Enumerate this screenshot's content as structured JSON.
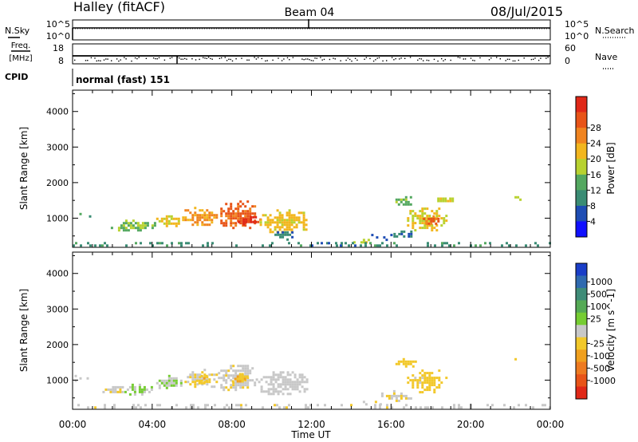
{
  "header": {
    "station": "Halley (fitACF)",
    "beam": "Beam 04",
    "date": "08/Jul/2015"
  },
  "noise_panel": {
    "left_label": "N.Sky",
    "right_label": "N.Search",
    "left_ticks": [
      "10^5",
      "10^0"
    ],
    "right_ticks": [
      "10^5",
      "10^0"
    ]
  },
  "freq_panel": {
    "label_line1": "Freq.",
    "label_line2": "[MHz]",
    "left_ticks": [
      "18",
      "8"
    ],
    "right_ticks": [
      "60",
      "0"
    ],
    "right_label": "Nave"
  },
  "cpid": {
    "label": "CPID",
    "text": "normal (fast) 151"
  },
  "axes": {
    "x_ticks": [
      "00:00",
      "04:00",
      "08:00",
      "12:00",
      "16:00",
      "20:00",
      "00:00"
    ],
    "xlabel": "Time UT",
    "ylabel": "Slant Range [km]",
    "y_ticks": [
      "1000",
      "2000",
      "3000",
      "4000"
    ]
  },
  "chart_data": [
    {
      "type": "heatmap",
      "panel": "power",
      "xlabel": "",
      "ylabel": "Slant Range [km]",
      "x_unit": "hours UT",
      "xlim": [
        0,
        24
      ],
      "ylim": [
        180,
        4600
      ],
      "colorbar": {
        "label": "Power [dB]",
        "ticks": [
          "4",
          "8",
          "12",
          "16",
          "20",
          "24",
          "28"
        ],
        "colors": [
          "#1010ff",
          "#1e4db4",
          "#3a8c74",
          "#54a860",
          "#b8d230",
          "#f2b61e",
          "#f08420",
          "#e85418",
          "#e02818"
        ],
        "range": [
          0,
          30
        ]
      },
      "regions": [
        {
          "x": [
            0.1,
            0.9
          ],
          "y": [
            980,
            1150
          ],
          "value": 10
        },
        {
          "x": [
            1.8,
            4.2
          ],
          "y": [
            680,
            960
          ],
          "value": 13
        },
        {
          "x": [
            4.2,
            5.5
          ],
          "y": [
            780,
            1150
          ],
          "value": 17
        },
        {
          "x": [
            5.5,
            7.3
          ],
          "y": [
            800,
            1320
          ],
          "value": 21
        },
        {
          "x": [
            7.3,
            9.2
          ],
          "y": [
            700,
            1500
          ],
          "value": 24
        },
        {
          "x": [
            8.3,
            9.4
          ],
          "y": [
            820,
            1060
          ],
          "value": 28
        },
        {
          "x": [
            9.4,
            11.8
          ],
          "y": [
            620,
            1250
          ],
          "value": 18
        },
        {
          "x": [
            9.9,
            11.2
          ],
          "y": [
            430,
            700
          ],
          "value": 7
        },
        {
          "x": [
            14.1,
            15.0
          ],
          "y": [
            300,
            420
          ],
          "value": 16
        },
        {
          "x": [
            15.0,
            16.0
          ],
          "y": [
            420,
            560
          ],
          "value": 5
        },
        {
          "x": [
            16.0,
            17.0
          ],
          "y": [
            480,
            720
          ],
          "value": 8
        },
        {
          "x": [
            16.8,
            18.8
          ],
          "y": [
            650,
            1300
          ],
          "value": 17
        },
        {
          "x": [
            17.6,
            18.4
          ],
          "y": [
            820,
            1080
          ],
          "value": 24
        },
        {
          "x": [
            16.1,
            17.2
          ],
          "y": [
            1380,
            1620
          ],
          "value": 12
        },
        {
          "x": [
            18.2,
            19.2
          ],
          "y": [
            1450,
            1650
          ],
          "value": 15
        },
        {
          "x": [
            22.2,
            22.5
          ],
          "y": [
            1500,
            1620
          ],
          "value": 14
        },
        {
          "x": [
            0.0,
            24.0
          ],
          "y": [
            200,
            330
          ],
          "value": 9
        },
        {
          "x": [
            11.5,
            14.2
          ],
          "y": [
            220,
            330
          ],
          "value": 7
        }
      ]
    },
    {
      "type": "heatmap",
      "panel": "velocity",
      "xlabel": "Time UT",
      "ylabel": "Slant Range [km]",
      "x_unit": "hours UT",
      "xlim": [
        0,
        24
      ],
      "ylim": [
        180,
        4600
      ],
      "colorbar": {
        "label": "Velocity [m s^-1]",
        "ticks": [
          "1000",
          "500",
          "100",
          "25",
          "-25",
          "-100",
          "-500",
          "-1000"
        ],
        "colors": [
          "#1a3ec8",
          "#2f6ab0",
          "#3f8c78",
          "#55aa55",
          "#76cd32",
          "#c8c8c8",
          "#f2c82a",
          "#f0a01e",
          "#ee7a20",
          "#e85418",
          "#e02818"
        ],
        "range": [
          -1250,
          1250
        ]
      },
      "regions": [
        {
          "x": [
            0.1,
            0.9
          ],
          "y": [
            980,
            1150
          ],
          "value": 40
        },
        {
          "x": [
            1.5,
            2.6
          ],
          "y": [
            650,
            900
          ],
          "value": -80
        },
        {
          "x": [
            2.6,
            4.0
          ],
          "y": [
            600,
            900
          ],
          "value": 120
        },
        {
          "x": [
            4.2,
            5.5
          ],
          "y": [
            780,
            1150
          ],
          "value": 60
        },
        {
          "x": [
            5.5,
            7.3
          ],
          "y": [
            800,
            1320
          ],
          "value": -120
        },
        {
          "x": [
            6.2,
            6.8
          ],
          "y": [
            900,
            1150
          ],
          "value": -300
        },
        {
          "x": [
            7.3,
            9.2
          ],
          "y": [
            700,
            1500
          ],
          "value": -70
        },
        {
          "x": [
            8.0,
            8.8
          ],
          "y": [
            950,
            1200
          ],
          "value": -300
        },
        {
          "x": [
            9.2,
            11.8
          ],
          "y": [
            620,
            1250
          ],
          "value": 0
        },
        {
          "x": [
            14.1,
            15.5
          ],
          "y": [
            300,
            420
          ],
          "value": -60
        },
        {
          "x": [
            15.5,
            17.0
          ],
          "y": [
            450,
            720
          ],
          "value": -80
        },
        {
          "x": [
            16.8,
            18.8
          ],
          "y": [
            650,
            1300
          ],
          "value": -200
        },
        {
          "x": [
            16.1,
            17.2
          ],
          "y": [
            1380,
            1620
          ],
          "value": -260
        },
        {
          "x": [
            22.2,
            22.5
          ],
          "y": [
            1500,
            1620
          ],
          "value": -250
        },
        {
          "x": [
            0.0,
            24.0
          ],
          "y": [
            200,
            330
          ],
          "value": -40
        }
      ]
    }
  ]
}
